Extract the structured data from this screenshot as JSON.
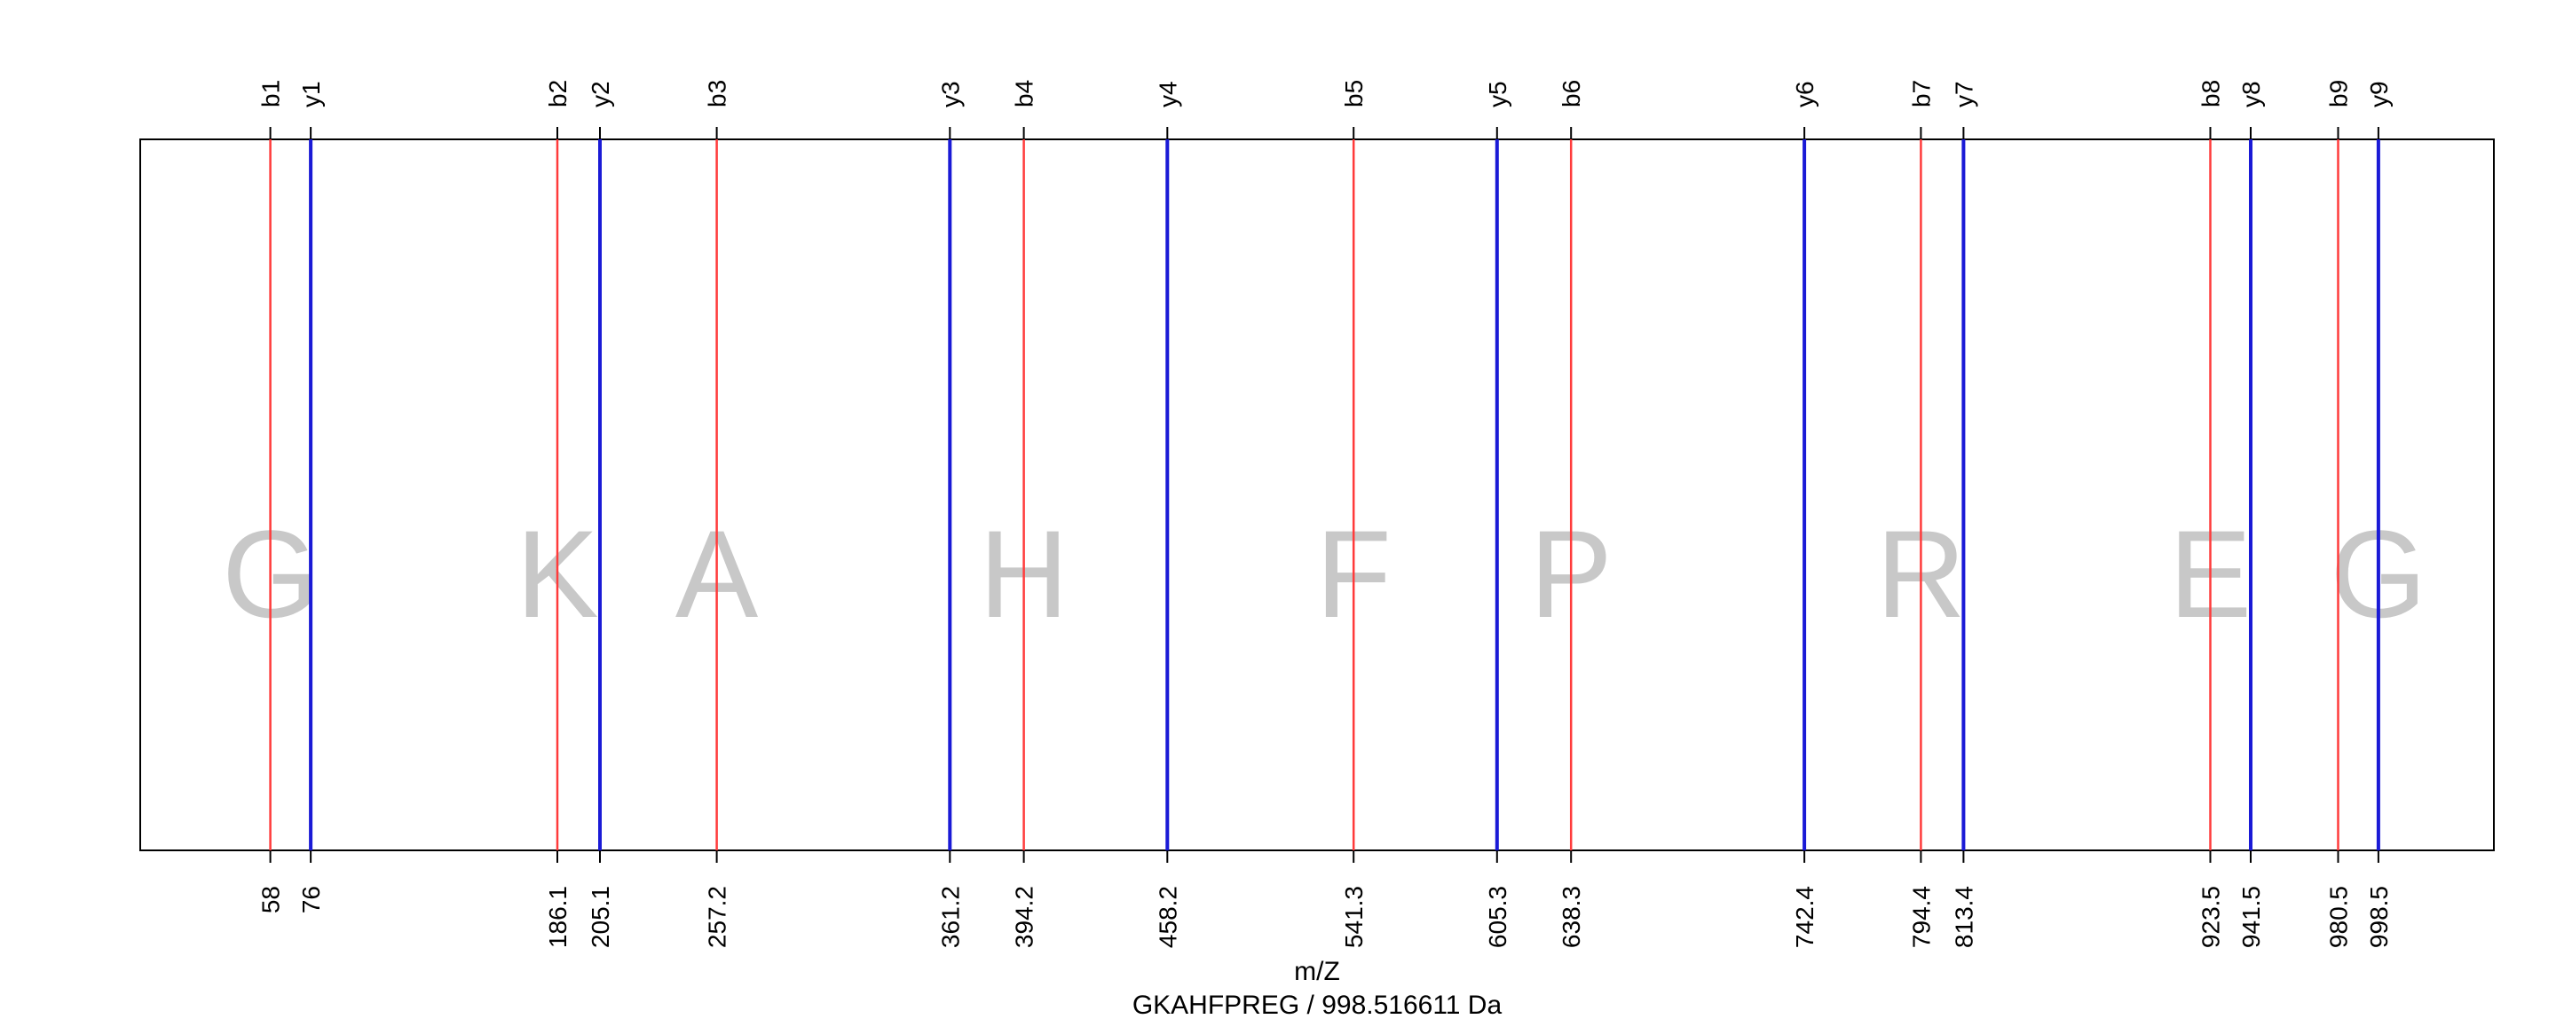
{
  "chart_data": {
    "type": "fragment-ion-map",
    "peptide": "GKAHFPREG",
    "xlabel": "m/Z",
    "subtitle": "GKAHFPREG / 998.516611 Da",
    "xlim": [
      0,
      1050
    ],
    "ions": [
      {
        "label": "b1",
        "mz": 58.03,
        "tick_label": "58",
        "series": "b"
      },
      {
        "label": "y1",
        "mz": 76.04,
        "tick_label": "76",
        "series": "y"
      },
      {
        "label": "b2",
        "mz": 186.1,
        "tick_label": "186.1",
        "series": "b"
      },
      {
        "label": "y2",
        "mz": 205.1,
        "tick_label": "205.1",
        "series": "y"
      },
      {
        "label": "b3",
        "mz": 257.2,
        "tick_label": "257.2",
        "series": "b"
      },
      {
        "label": "y3",
        "mz": 361.2,
        "tick_label": "361.2",
        "series": "y"
      },
      {
        "label": "b4",
        "mz": 394.2,
        "tick_label": "394.2",
        "series": "b"
      },
      {
        "label": "y4",
        "mz": 458.2,
        "tick_label": "458.2",
        "series": "y"
      },
      {
        "label": "b5",
        "mz": 541.3,
        "tick_label": "541.3",
        "series": "b"
      },
      {
        "label": "y5",
        "mz": 605.3,
        "tick_label": "605.3",
        "series": "y"
      },
      {
        "label": "b6",
        "mz": 638.3,
        "tick_label": "638.3",
        "series": "b"
      },
      {
        "label": "y6",
        "mz": 742.4,
        "tick_label": "742.4",
        "series": "y"
      },
      {
        "label": "b7",
        "mz": 794.4,
        "tick_label": "794.4",
        "series": "b"
      },
      {
        "label": "y7",
        "mz": 813.4,
        "tick_label": "813.4",
        "series": "y"
      },
      {
        "label": "b8",
        "mz": 923.5,
        "tick_label": "923.5",
        "series": "b"
      },
      {
        "label": "y8",
        "mz": 941.5,
        "tick_label": "941.5",
        "series": "y"
      },
      {
        "label": "b9",
        "mz": 980.5,
        "tick_label": "980.5",
        "series": "b"
      },
      {
        "label": "y9",
        "mz": 998.5,
        "tick_label": "998.5",
        "series": "y"
      }
    ],
    "residues": [
      {
        "letter": "G",
        "mz": 58.03
      },
      {
        "letter": "K",
        "mz": 186.1
      },
      {
        "letter": "A",
        "mz": 257.2
      },
      {
        "letter": "H",
        "mz": 394.2
      },
      {
        "letter": "F",
        "mz": 541.3
      },
      {
        "letter": "P",
        "mz": 638.3
      },
      {
        "letter": "R",
        "mz": 794.4
      },
      {
        "letter": "E",
        "mz": 923.5
      },
      {
        "letter": "G",
        "mz": 998.5
      }
    ],
    "colors": {
      "b": "#ff3b3b",
      "y": "#1a1ad6",
      "residue": "#c8c8c8",
      "frame": "#000000"
    },
    "grid": false,
    "legend": "none"
  }
}
